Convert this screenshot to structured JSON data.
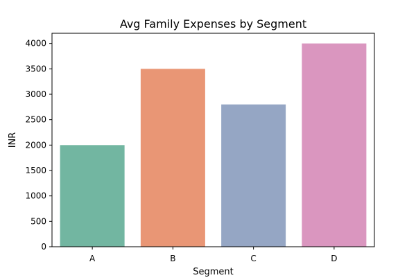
{
  "chart_data": {
    "type": "bar",
    "title": "Avg Family Expenses by Segment",
    "xlabel": "Segment",
    "ylabel": "INR",
    "categories": [
      "A",
      "B",
      "C",
      "D"
    ],
    "values": [
      2000,
      3500,
      2800,
      4000
    ],
    "colors": [
      "#72b6a1",
      "#e99675",
      "#95a6c4",
      "#da96bf"
    ],
    "ylim": [
      0,
      4200
    ],
    "yticks": [
      0,
      500,
      1000,
      1500,
      2000,
      2500,
      3000,
      3500,
      4000
    ],
    "grid": false,
    "legend": "none"
  }
}
